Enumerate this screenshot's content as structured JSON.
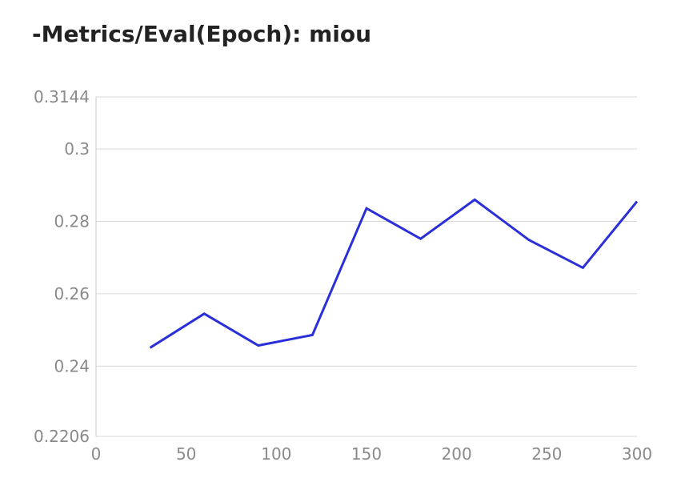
{
  "chart_data": {
    "type": "line",
    "title": "-Metrics/Eval(Epoch): miou",
    "xlabel": "",
    "ylabel": "",
    "xlim": [
      0,
      300
    ],
    "ylim": [
      0.2206,
      0.3144
    ],
    "x_ticks": [
      0,
      50,
      100,
      150,
      200,
      250,
      300
    ],
    "x_tick_labels": [
      "0",
      "50",
      "100",
      "150",
      "200",
      "250",
      "300"
    ],
    "y_ticks": [
      0.2206,
      0.24,
      0.26,
      0.28,
      0.3,
      0.3144
    ],
    "y_tick_labels": [
      "0.2206",
      "0.24",
      "0.26",
      "0.28",
      "0.3",
      "0.3144"
    ],
    "grid": true,
    "series": [
      {
        "color": "#2a2fd8",
        "x": [
          30,
          60,
          90,
          120,
          150,
          180,
          210,
          240,
          270,
          300
        ],
        "y": [
          0.2451,
          0.2545,
          0.2457,
          0.2486,
          0.2836,
          0.2752,
          0.286,
          0.2749,
          0.2672,
          0.2855
        ]
      }
    ]
  },
  "colors": {
    "line": "#2a2fd8",
    "grid": "#d9d9d9",
    "axis": "#cccccc",
    "tick_text": "#8a8a8a",
    "title_text": "#222222"
  }
}
